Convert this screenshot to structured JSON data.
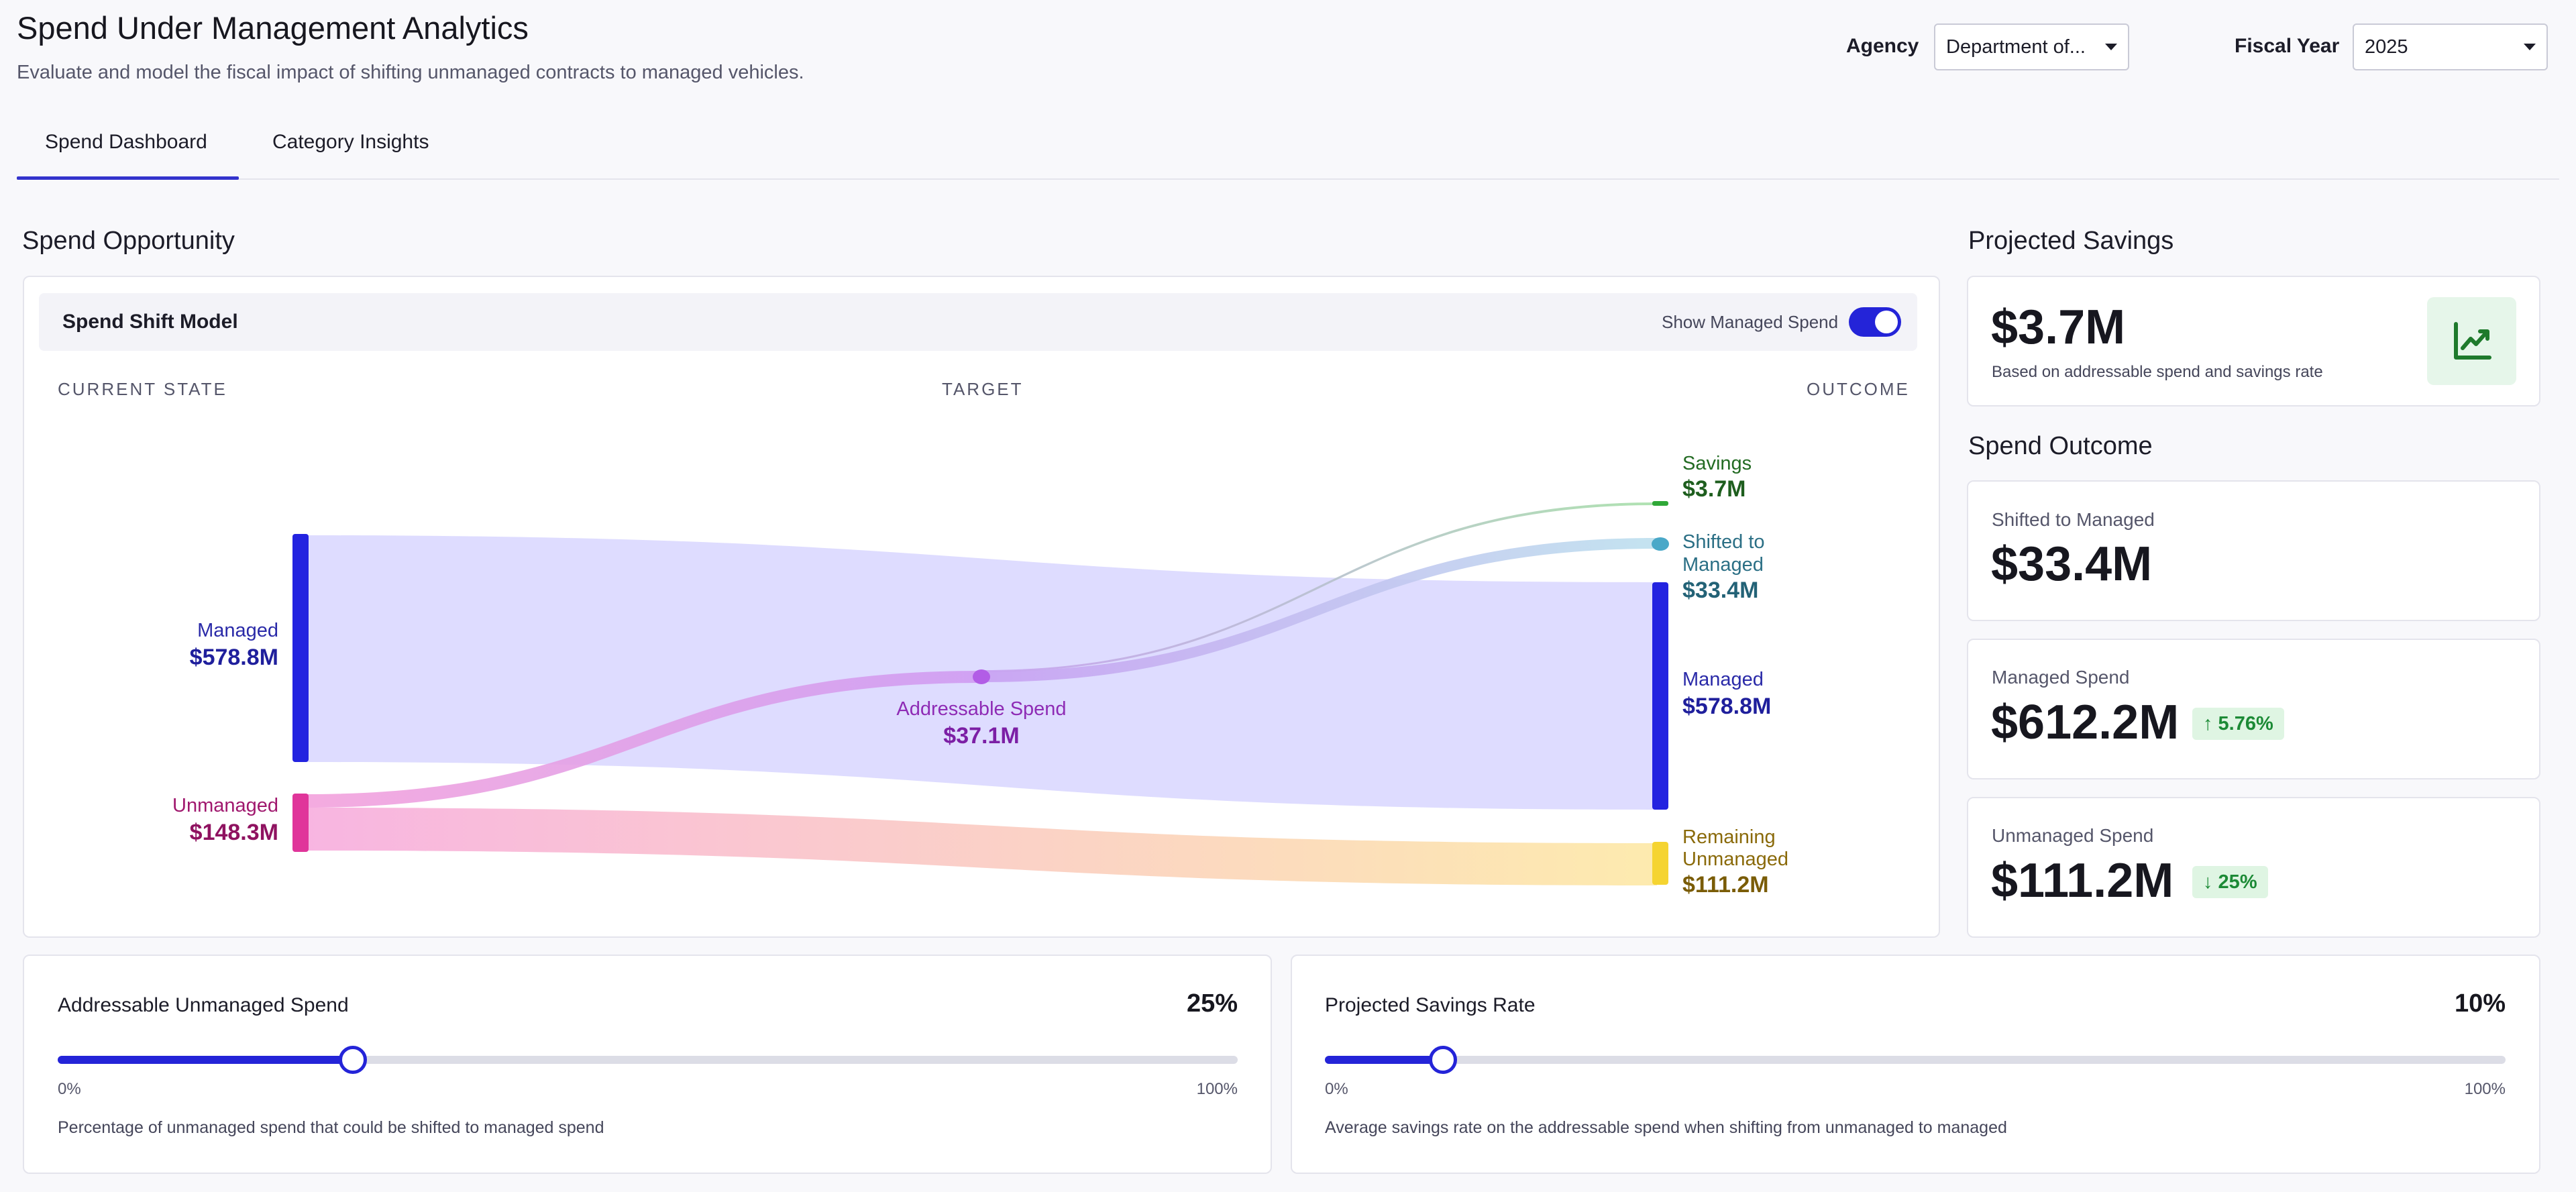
{
  "header": {
    "title": "Spend Under Management Analytics",
    "subtitle": "Evaluate and model the fiscal impact of shifting unmanaged contracts to managed vehicles.",
    "agency_label": "Agency",
    "agency_value": "Department of...",
    "fiscal_year_label": "Fiscal Year",
    "fiscal_year_value": "2025"
  },
  "tabs": [
    {
      "label": "Spend Dashboard",
      "active": true
    },
    {
      "label": "Category Insights",
      "active": false
    }
  ],
  "spend_opportunity": {
    "section_title": "Spend Opportunity",
    "card_title": "Spend Shift Model",
    "toggle_label": "Show Managed Spend",
    "toggle_on": true,
    "columns": [
      "CURRENT STATE",
      "TARGET",
      "OUTCOME"
    ],
    "nodes": {
      "managed_current": {
        "label": "Managed",
        "value": "$578.8M"
      },
      "unmanaged_current": {
        "label": "Unmanaged",
        "value": "$148.3M"
      },
      "addressable": {
        "label": "Addressable Spend",
        "value": "$37.1M"
      },
      "savings": {
        "label": "Savings",
        "value": "$3.7M"
      },
      "shifted": {
        "label_line1": "Shifted to",
        "label_line2": "Managed",
        "value": "$33.4M"
      },
      "managed_outcome": {
        "label": "Managed",
        "value": "$578.8M"
      },
      "remaining": {
        "label_line1": "Remaining",
        "label_line2": "Unmanaged",
        "value": "$111.2M"
      }
    },
    "colors": {
      "managed": "#2323e0",
      "unmanaged": "#e0359a",
      "addressable": "#b25de6",
      "savings": "#2fa837",
      "shifted": "#4aa8c8",
      "remaining": "#f5d431"
    }
  },
  "projected_savings": {
    "section_title": "Projected Savings",
    "value": "$3.7M",
    "caption": "Based on addressable spend and savings rate",
    "icon": "trend-chart-icon"
  },
  "spend_outcome": {
    "section_title": "Spend Outcome",
    "cards": [
      {
        "label": "Shifted to Managed",
        "value": "$33.4M",
        "badge": ""
      },
      {
        "label": "Managed Spend",
        "value": "$612.2M",
        "badge": "↑ 5.76%"
      },
      {
        "label": "Unmanaged Spend",
        "value": "$111.2M",
        "badge": "↓ 25%"
      }
    ]
  },
  "sliders": [
    {
      "title": "Addressable Unmanaged Spend",
      "value_label": "25%",
      "value": 0.25,
      "min_label": "0%",
      "max_label": "100%",
      "description": "Percentage of unmanaged spend that could be shifted to managed spend"
    },
    {
      "title": "Projected Savings Rate",
      "value_label": "10%",
      "value": 0.1,
      "min_label": "0%",
      "max_label": "100%",
      "description": "Average savings rate on the addressable spend when shifting from unmanaged to managed"
    }
  ]
}
